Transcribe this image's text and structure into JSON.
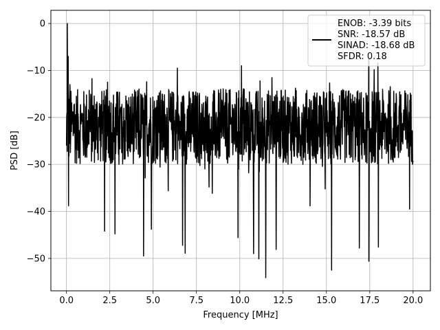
{
  "chart_data": {
    "type": "line",
    "title": "",
    "xlabel": "Frequency [MHz]",
    "ylabel": "PSD [dB]",
    "xlim": [
      -0.9,
      21.0
    ],
    "ylim": [
      -56.9,
      2.8
    ],
    "grid": true,
    "legend_position": "top-right",
    "x_ticks": [
      0.0,
      2.5,
      5.0,
      7.5,
      10.0,
      12.5,
      15.0,
      17.5,
      20.0
    ],
    "x_tick_labels": [
      "0.0",
      "2.5",
      "5.0",
      "7.5",
      "10.0",
      "12.5",
      "15.0",
      "17.5",
      "20.0"
    ],
    "y_ticks": [
      0,
      -10,
      -20,
      -30,
      -40,
      -50
    ],
    "y_tick_labels": [
      "0",
      "−10",
      "−20",
      "−30",
      "−40",
      "−50"
    ],
    "series": [
      {
        "color": "#000000",
        "description_values": {
          "x_start": 0.0,
          "x_end": 20.0,
          "peak_at_zero": 0.0,
          "noise_band_low": -31,
          "noise_band_high": -13,
          "noise_center": -22
        },
        "spikes": [
          {
            "x": 0.05,
            "y": 0.0
          },
          {
            "x": 0.1,
            "y": -7
          },
          {
            "x": 0.12,
            "y": -38.8
          },
          {
            "x": 0.2,
            "y": -13
          },
          {
            "x": 2.2,
            "y": -44.2
          },
          {
            "x": 2.8,
            "y": -44.8
          },
          {
            "x": 4.45,
            "y": -49.5
          },
          {
            "x": 4.9,
            "y": -43.8
          },
          {
            "x": 6.4,
            "y": -9.5
          },
          {
            "x": 6.7,
            "y": -47.2
          },
          {
            "x": 6.85,
            "y": -48.9
          },
          {
            "x": 9.9,
            "y": -45.6
          },
          {
            "x": 10.1,
            "y": -9.0
          },
          {
            "x": 10.8,
            "y": -49.0
          },
          {
            "x": 11.1,
            "y": -50.1
          },
          {
            "x": 11.5,
            "y": -54.1
          },
          {
            "x": 12.1,
            "y": -48.1
          },
          {
            "x": 15.3,
            "y": -52.5
          },
          {
            "x": 16.9,
            "y": -47.8
          },
          {
            "x": 17.45,
            "y": -50.6
          },
          {
            "x": 18.0,
            "y": -47.6
          },
          {
            "x": 19.8,
            "y": -39.5
          }
        ]
      }
    ],
    "legend": {
      "lines": [
        "ENOB: -3.39 bits",
        "SNR: -18.57 dB",
        "SINAD: -18.68 dB",
        "SFDR: 0.18"
      ]
    }
  }
}
